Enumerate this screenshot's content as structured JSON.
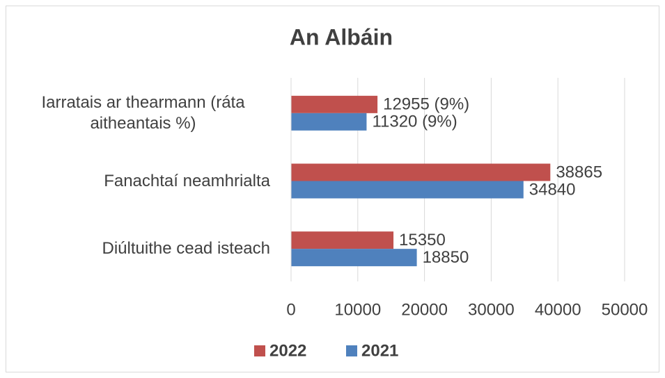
{
  "chart_data": {
    "type": "bar",
    "orientation": "horizontal",
    "title": "An Albáin",
    "categories": [
      "Iarratais ar thearmann (ráta aitheantais %)",
      "Fanachtaí neamhrialta",
      "Diúltuithe cead isteach"
    ],
    "series": [
      {
        "name": "2022",
        "color": "#c0504d",
        "values": [
          12955,
          38865,
          15350
        ],
        "value_labels": [
          "12955 (9%)",
          "38865",
          "15350"
        ]
      },
      {
        "name": "2021",
        "color": "#4f81bd",
        "values": [
          11320,
          34840,
          18850
        ],
        "value_labels": [
          "11320 (9%)",
          "34840",
          "18850"
        ]
      }
    ],
    "xlim": [
      0,
      50000
    ],
    "xticks": [
      0,
      10000,
      20000,
      30000,
      40000,
      50000
    ],
    "grid": true,
    "legend": "bottom"
  }
}
